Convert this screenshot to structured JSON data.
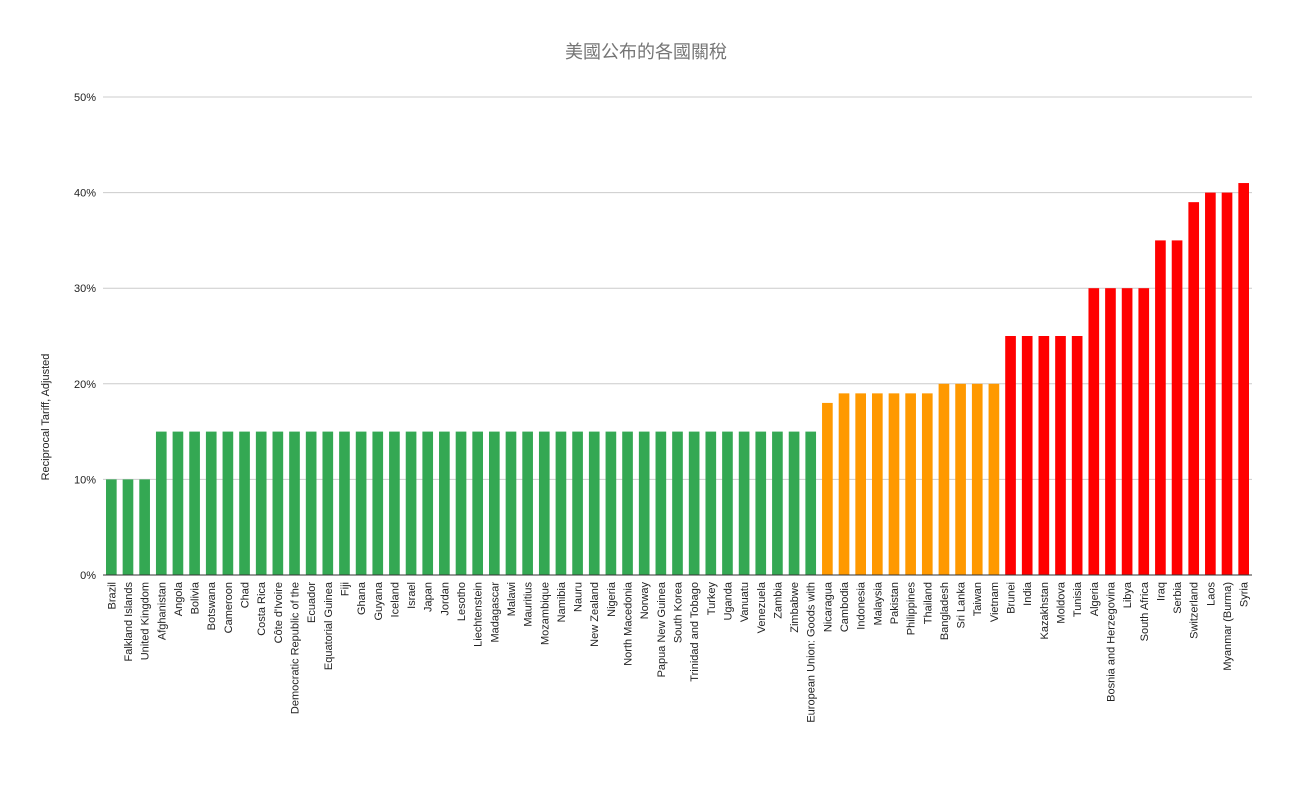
{
  "chart_data": {
    "type": "bar",
    "title": "美國公布的各國關稅",
    "xlabel": "",
    "ylabel": "Reciprocal Tariff, Adjusted",
    "ylim": [
      0,
      0.5
    ],
    "y_ticks": [
      "0%",
      "10%",
      "20%",
      "30%",
      "40%",
      "50%"
    ],
    "grid": true,
    "legend": "none",
    "colors": {
      "green": "#34a853",
      "orange": "#ff9900",
      "red": "#ff0000",
      "grid": "#cccccc",
      "text": "#222222",
      "title": "#757575"
    },
    "categories": [
      "Brazil",
      "Falkland Islands",
      "United Kingdom",
      "Afghanistan",
      "Angola",
      "Bolivia",
      "Botswana",
      "Cameroon",
      "Chad",
      "Costa Rica",
      "Côte d'Ivoire",
      "Democratic Republic of the",
      "Ecuador",
      "Equatorial Guinea",
      "Fiji",
      "Ghana",
      "Guyana",
      "Iceland",
      "Israel",
      "Japan",
      "Jordan",
      "Lesotho",
      "Liechtenstein",
      "Madagascar",
      "Malawi",
      "Mauritius",
      "Mozambique",
      "Namibia",
      "Nauru",
      "New Zealand",
      "Nigeria",
      "North Macedonia",
      "Norway",
      "Papua New Guinea",
      "South Korea",
      "Trinidad and Tobago",
      "Turkey",
      "Uganda",
      "Vanuatu",
      "Venezuela",
      "Zambia",
      "Zimbabwe",
      "European Union: Goods with",
      "Nicaragua",
      "Cambodia",
      "Indonesia",
      "Malaysia",
      "Pakistan",
      "Philippines",
      "Thailand",
      "Bangladesh",
      "Sri Lanka",
      "Taiwan",
      "Vietnam",
      "Brunei",
      "India",
      "Kazakhstan",
      "Moldova",
      "Tunisia",
      "Algeria",
      "Bosnia and Herzegovina",
      "Libya",
      "South Africa",
      "Iraq",
      "Serbia",
      "Switzerland",
      "Laos",
      "Myanmar (Burma)",
      "Syria"
    ],
    "values": [
      0.1,
      0.1,
      0.1,
      0.15,
      0.15,
      0.15,
      0.15,
      0.15,
      0.15,
      0.15,
      0.15,
      0.15,
      0.15,
      0.15,
      0.15,
      0.15,
      0.15,
      0.15,
      0.15,
      0.15,
      0.15,
      0.15,
      0.15,
      0.15,
      0.15,
      0.15,
      0.15,
      0.15,
      0.15,
      0.15,
      0.15,
      0.15,
      0.15,
      0.15,
      0.15,
      0.15,
      0.15,
      0.15,
      0.15,
      0.15,
      0.15,
      0.15,
      0.15,
      0.18,
      0.19,
      0.19,
      0.19,
      0.19,
      0.19,
      0.19,
      0.2,
      0.2,
      0.2,
      0.2,
      0.25,
      0.25,
      0.25,
      0.25,
      0.25,
      0.3,
      0.3,
      0.3,
      0.3,
      0.35,
      0.35,
      0.39,
      0.4,
      0.4,
      0.41
    ],
    "bar_colors": [
      "green",
      "green",
      "green",
      "green",
      "green",
      "green",
      "green",
      "green",
      "green",
      "green",
      "green",
      "green",
      "green",
      "green",
      "green",
      "green",
      "green",
      "green",
      "green",
      "green",
      "green",
      "green",
      "green",
      "green",
      "green",
      "green",
      "green",
      "green",
      "green",
      "green",
      "green",
      "green",
      "green",
      "green",
      "green",
      "green",
      "green",
      "green",
      "green",
      "green",
      "green",
      "green",
      "green",
      "orange",
      "orange",
      "orange",
      "orange",
      "orange",
      "orange",
      "orange",
      "orange",
      "orange",
      "orange",
      "orange",
      "red",
      "red",
      "red",
      "red",
      "red",
      "red",
      "red",
      "red",
      "red",
      "red",
      "red",
      "red",
      "red",
      "red",
      "red"
    ]
  }
}
